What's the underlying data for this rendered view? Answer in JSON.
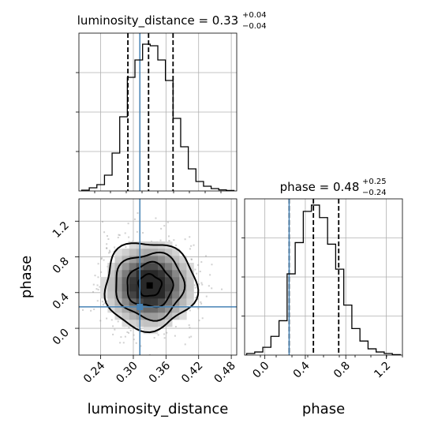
{
  "colors": {
    "truth": "#4682b4",
    "hist": "#000000",
    "quantile": "#000000",
    "grid": "#b0b0b0",
    "samples": "#999999"
  },
  "chart_data": [
    {
      "type": "histogram",
      "panel": "luminosity_distance",
      "title": {
        "main": "luminosity_distance = 0.33",
        "sup": "+0.04",
        "sub": "−0.04"
      },
      "xlim": [
        0.2,
        0.49
      ],
      "bins_x": [
        0.212,
        0.226,
        0.24,
        0.254,
        0.268,
        0.282,
        0.296,
        0.31,
        0.324,
        0.338,
        0.352,
        0.366,
        0.38,
        0.394,
        0.408,
        0.422,
        0.436,
        0.45,
        0.464,
        0.478
      ],
      "counts": [
        0.5,
        2,
        4,
        10,
        24,
        47,
        72,
        83,
        93,
        92,
        83,
        70,
        46,
        28,
        14,
        6,
        3,
        1.5,
        0.7,
        0.3
      ],
      "ymax": 100,
      "quantiles": [
        0.29,
        0.328,
        0.373
      ],
      "truth": 0.312,
      "xlabel": "luminosity_distance"
    },
    {
      "type": "histogram",
      "panel": "phase",
      "title": {
        "main": "phase = 0.48",
        "sup": "+0.25",
        "sub": "−0.24"
      },
      "xlim": [
        -0.2,
        1.36
      ],
      "xticks": [
        0.0,
        0.4,
        0.8,
        1.2
      ],
      "xticklabels": [
        "0.0",
        "0.4",
        "0.8",
        "1.2"
      ],
      "bins_x": [
        -0.14,
        -0.06,
        0.02,
        0.1,
        0.18,
        0.26,
        0.34,
        0.42,
        0.5,
        0.58,
        0.66,
        0.74,
        0.82,
        0.9,
        0.98,
        1.06,
        1.14,
        1.22,
        1.3
      ],
      "counts": [
        1,
        2,
        5,
        12,
        22,
        52,
        72,
        92,
        96,
        88,
        71,
        55,
        32,
        17,
        9,
        4,
        2,
        1,
        0.3
      ],
      "ymax": 100,
      "quantiles": [
        0.24,
        0.48,
        0.73
      ],
      "truth": 0.24,
      "xlabel": "phase"
    },
    {
      "type": "scatter-2d-hist",
      "panel": "luminosity_distance vs phase",
      "xlim": [
        0.2,
        0.49
      ],
      "ylim": [
        -0.3,
        1.45
      ],
      "xticks": [
        0.24,
        0.3,
        0.36,
        0.42,
        0.48
      ],
      "xticklabels": [
        "0.24",
        "0.30",
        "0.36",
        "0.42",
        "0.48"
      ],
      "yticks": [
        0.0,
        0.4,
        0.8,
        1.2
      ],
      "yticklabels": [
        "0.0",
        "0.4",
        "0.8",
        "1.2"
      ],
      "center": [
        0.33,
        0.48
      ],
      "sigma": [
        0.042,
        0.245
      ],
      "contour_levels_sigma": [
        0.5,
        1.0,
        1.5,
        2.0
      ],
      "truth": [
        0.312,
        0.24
      ],
      "xlabel": "luminosity_distance",
      "ylabel": "phase"
    }
  ]
}
